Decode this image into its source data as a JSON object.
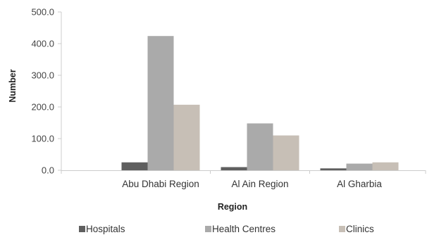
{
  "chart_data": {
    "type": "bar",
    "title": "",
    "xlabel": "Region",
    "ylabel": "Number",
    "categories": [
      "Abu Dhabi Region",
      "Al Ain Region",
      "Al Gharbia"
    ],
    "series": [
      {
        "name": "Hospitals",
        "values": [
          25,
          10,
          6
        ]
      },
      {
        "name": "Health Centres",
        "values": [
          424,
          148,
          21
        ]
      },
      {
        "name": "Clinics",
        "values": [
          207,
          110,
          25
        ]
      }
    ],
    "ylim": [
      0,
      500
    ],
    "yticks": [
      0,
      100,
      200,
      300,
      400,
      500
    ],
    "ytick_labels": [
      "0.0",
      "100.0",
      "200.0",
      "300.0",
      "400.0",
      "500.0"
    ],
    "grid": false,
    "legend_position": "bottom",
    "colors": {
      "Hospitals": "#5f5f5f",
      "Health Centres": "#aaaaaa",
      "Clinics": "#c7bfb6",
      "axis": "#cccccc"
    }
  }
}
